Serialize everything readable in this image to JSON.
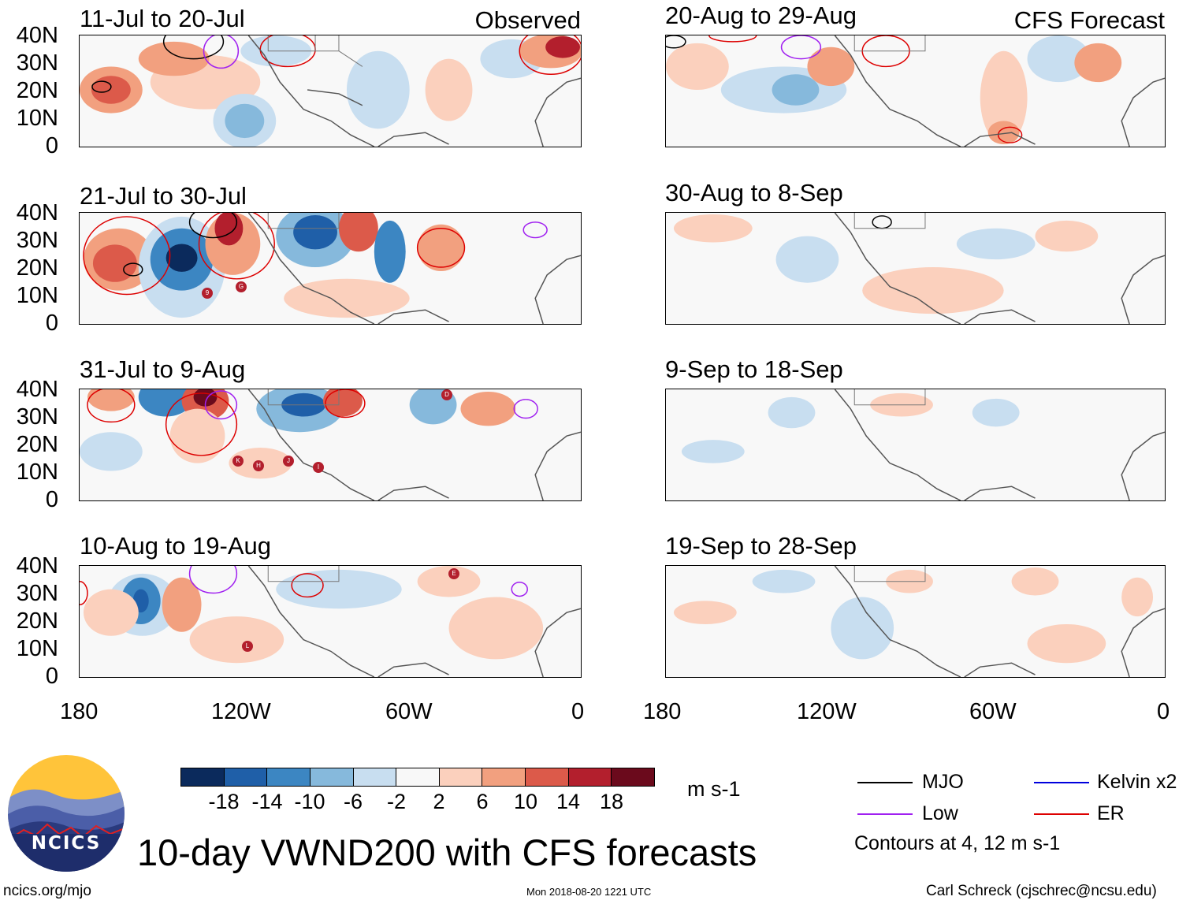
{
  "header": {
    "observed_label": "Observed",
    "forecast_label": "CFS Forecast"
  },
  "panels": [
    {
      "period": "11-Jul to 20-Jul",
      "column": "observed"
    },
    {
      "period": "21-Jul to 30-Jul",
      "column": "observed"
    },
    {
      "period": "31-Jul to 9-Aug",
      "column": "observed"
    },
    {
      "period": "10-Aug to 19-Aug",
      "column": "observed"
    },
    {
      "period": "20-Aug to 29-Aug",
      "column": "forecast"
    },
    {
      "period": "30-Aug to 8-Sep",
      "column": "forecast"
    },
    {
      "period": "9-Sep to 18-Sep",
      "column": "forecast"
    },
    {
      "period": "19-Sep to 28-Sep",
      "column": "forecast"
    }
  ],
  "axes": {
    "lat_ticks": [
      "40N",
      "30N",
      "20N",
      "10N",
      "0"
    ],
    "lon_ticks": [
      "180",
      "120W",
      "60W",
      "0"
    ]
  },
  "storms": {
    "p2": [
      "9",
      "G"
    ],
    "p3": [
      "D",
      "K",
      "H",
      "J",
      "I"
    ],
    "p4": [
      "E",
      "L"
    ]
  },
  "colorbar": {
    "ticks": [
      "-18",
      "-14",
      "-10",
      "-6",
      "-2",
      "2",
      "6",
      "10",
      "14",
      "18"
    ],
    "units": "m s-1",
    "colors": [
      "#0b2a5c",
      "#1f5fa8",
      "#3c86c2",
      "#86b9dc",
      "#c8def0",
      "#f8f8f8",
      "#fbd0bd",
      "#f2a07f",
      "#dc5a4a",
      "#b31f2d",
      "#6b0a1c"
    ]
  },
  "legend": {
    "items": [
      {
        "label": "MJO",
        "color": "#000000"
      },
      {
        "label": "Kelvin x2",
        "color": "#0000dd"
      },
      {
        "label": "Low",
        "color": "#a020f0"
      },
      {
        "label": "ER",
        "color": "#dd0000"
      }
    ],
    "contours_note": "Contours at 4, 12 m s-1"
  },
  "branding": {
    "logo_text": "NCICS",
    "main_title": "10-day VWND200 with CFS forecasts",
    "website": "ncics.org/mjo",
    "timestamp": "Mon 2018-08-20 1221 UTC",
    "author": "Carl Schreck (cjschrec@ncsu.edu)"
  }
}
